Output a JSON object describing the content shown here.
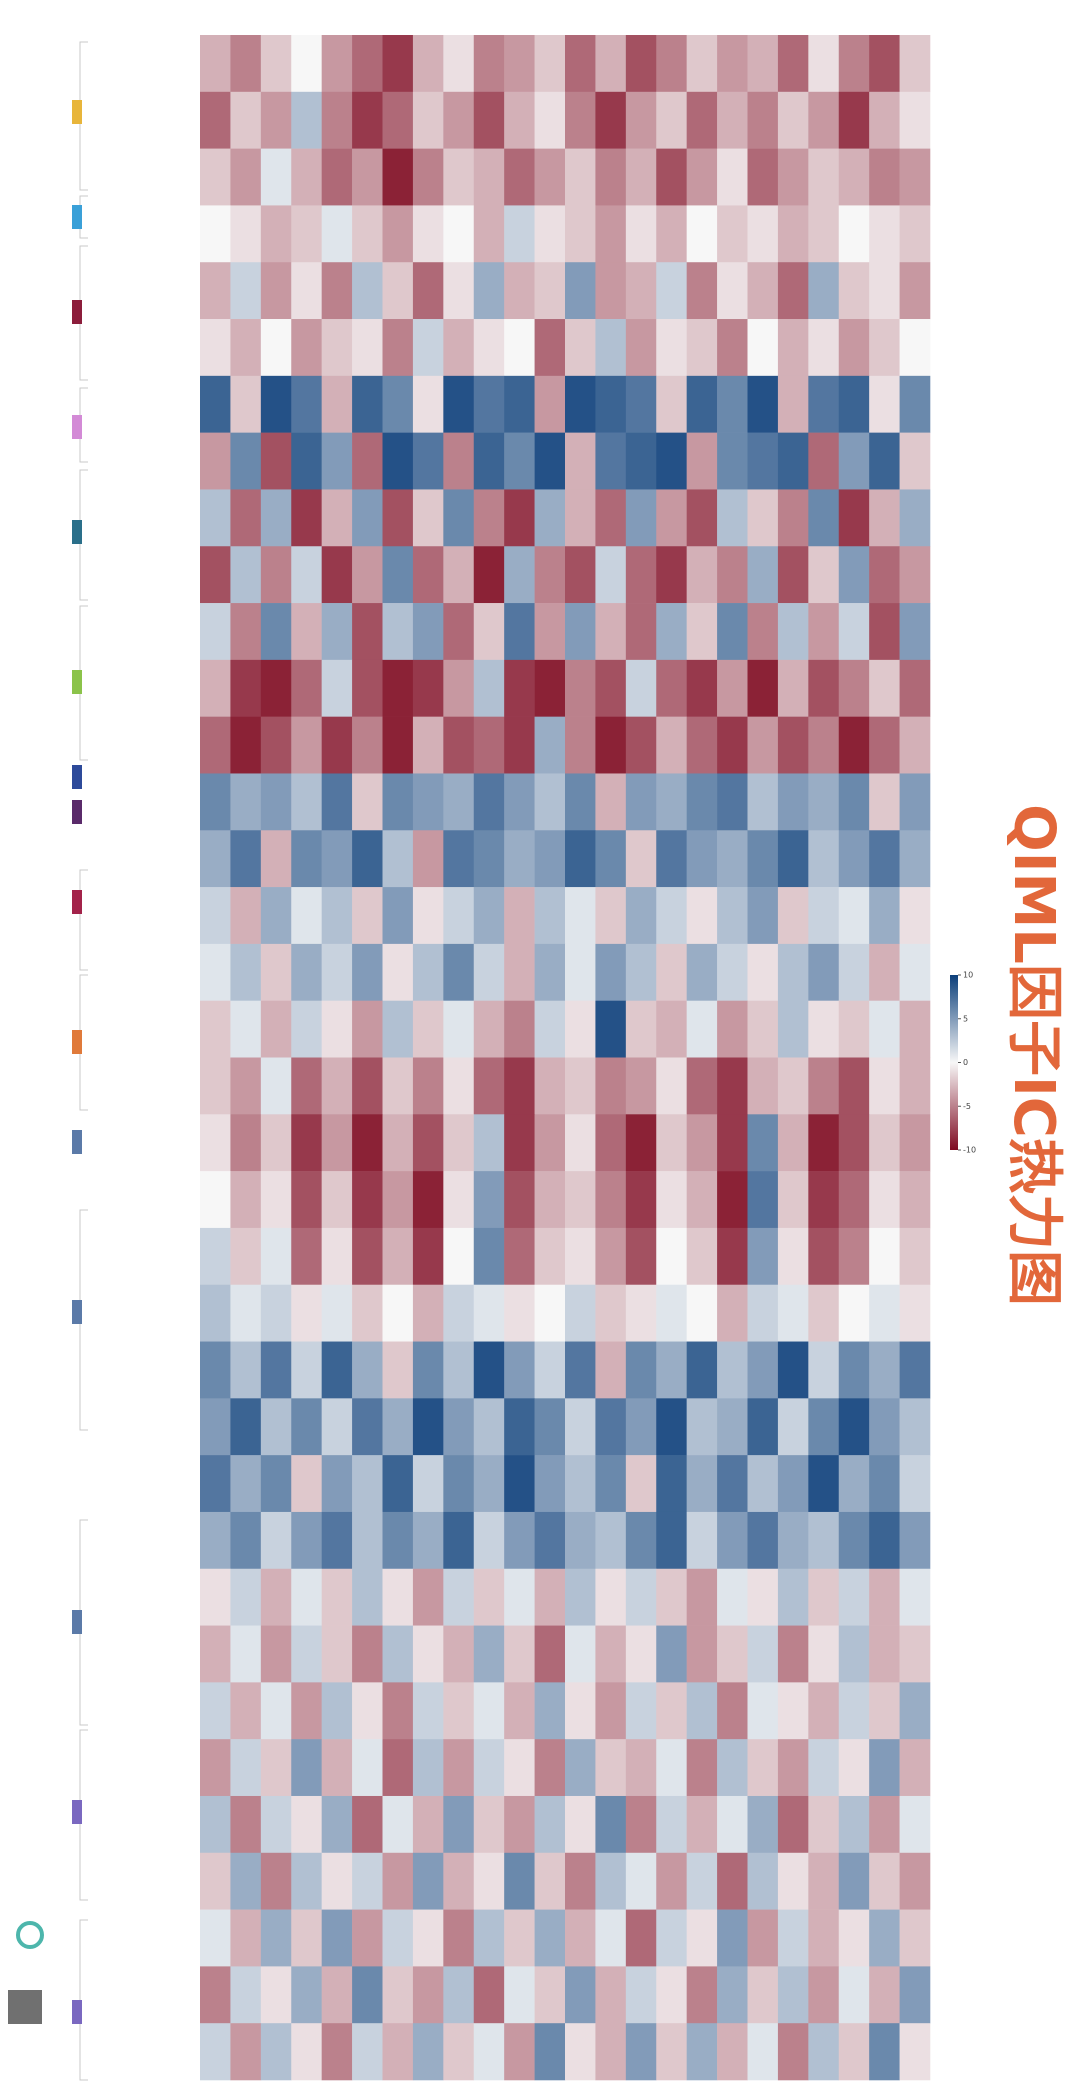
{
  "chart_data": {
    "type": "heatmap",
    "title": "QIML因子IC热力图",
    "title_color": "#e2673a",
    "colors": [
      "#7f0a21",
      "#f7f7f7",
      "#0c3f7a"
    ],
    "zlim": [
      -10,
      10
    ],
    "zticks": [
      -10,
      -5,
      0,
      5,
      10
    ],
    "values": [
      [
        -3,
        -5,
        -2,
        0,
        -4,
        -6,
        -8,
        -3,
        -1,
        -5,
        -4,
        -2,
        -6,
        -3,
        -7,
        -5,
        -2,
        -4,
        -3,
        -6,
        -1,
        -5,
        -7,
        -2
      ],
      [
        -6,
        -2,
        -4,
        3,
        -5,
        -8,
        -6,
        -2,
        -4,
        -7,
        -3,
        -1,
        -5,
        -8,
        -4,
        -2,
        -6,
        -3,
        -5,
        -2,
        -4,
        -8,
        -3,
        -1
      ],
      [
        -2,
        -4,
        1,
        -3,
        -6,
        -4,
        -9,
        -5,
        -2,
        -3,
        -6,
        -4,
        -2,
        -5,
        -3,
        -7,
        -4,
        -1,
        -6,
        -4,
        -2,
        -3,
        -5,
        -4
      ],
      [
        0,
        -1,
        -3,
        -2,
        1,
        -2,
        -4,
        -1,
        0,
        -3,
        2,
        -1,
        -2,
        -4,
        -1,
        -3,
        0,
        -2,
        -1,
        -3,
        -2,
        0,
        -1,
        -2
      ],
      [
        -3,
        2,
        -4,
        -1,
        -5,
        3,
        -2,
        -6,
        -1,
        4,
        -3,
        -2,
        5,
        -4,
        -3,
        2,
        -5,
        -1,
        -3,
        -6,
        4,
        -2,
        -1,
        -4
      ],
      [
        -1,
        -3,
        0,
        -4,
        -2,
        -1,
        -5,
        2,
        -3,
        -1,
        0,
        -6,
        -2,
        3,
        -4,
        -1,
        -2,
        -5,
        0,
        -3,
        -1,
        -4,
        -2,
        0
      ],
      [
        8,
        -2,
        9,
        7,
        -3,
        8,
        6,
        -1,
        9,
        7,
        8,
        -4,
        9,
        8,
        7,
        -2,
        8,
        6,
        9,
        -3,
        7,
        8,
        -1,
        6
      ],
      [
        -4,
        6,
        -7,
        8,
        5,
        -6,
        9,
        7,
        -5,
        8,
        6,
        9,
        -3,
        7,
        8,
        9,
        -4,
        6,
        7,
        8,
        -6,
        5,
        8,
        -2
      ],
      [
        3,
        -6,
        4,
        -8,
        -3,
        5,
        -7,
        -2,
        6,
        -5,
        -8,
        4,
        -3,
        -6,
        5,
        -4,
        -7,
        3,
        -2,
        -5,
        6,
        -8,
        -3,
        4
      ],
      [
        -7,
        3,
        -5,
        2,
        -8,
        -4,
        6,
        -6,
        -3,
        -9,
        4,
        -5,
        -7,
        2,
        -6,
        -8,
        -3,
        -5,
        4,
        -7,
        -2,
        5,
        -6,
        -4
      ],
      [
        2,
        -5,
        6,
        -3,
        4,
        -7,
        3,
        5,
        -6,
        -2,
        7,
        -4,
        5,
        -3,
        -6,
        4,
        -2,
        6,
        -5,
        3,
        -4,
        2,
        -7,
        5
      ],
      [
        -3,
        -8,
        -9,
        -6,
        2,
        -7,
        -9,
        -8,
        -4,
        3,
        -8,
        -9,
        -5,
        -7,
        2,
        -6,
        -8,
        -4,
        -9,
        -3,
        -7,
        -5,
        -2,
        -6
      ],
      [
        -6,
        -9,
        -7,
        -4,
        -8,
        -5,
        -9,
        -3,
        -7,
        -6,
        -8,
        4,
        -5,
        -9,
        -7,
        -3,
        -6,
        -8,
        -4,
        -7,
        -5,
        -9,
        -6,
        -3
      ],
      [
        6,
        4,
        5,
        3,
        7,
        -2,
        6,
        5,
        4,
        7,
        5,
        3,
        6,
        -3,
        5,
        4,
        6,
        7,
        3,
        5,
        4,
        6,
        -2,
        5
      ],
      [
        4,
        7,
        -3,
        6,
        5,
        8,
        3,
        -4,
        7,
        6,
        4,
        5,
        8,
        6,
        -2,
        7,
        5,
        4,
        6,
        8,
        3,
        5,
        7,
        4
      ],
      [
        2,
        -3,
        4,
        1,
        3,
        -2,
        5,
        -1,
        2,
        4,
        -3,
        3,
        1,
        -2,
        4,
        2,
        -1,
        3,
        5,
        -2,
        2,
        1,
        4,
        -1
      ],
      [
        1,
        3,
        -2,
        4,
        2,
        5,
        -1,
        3,
        6,
        2,
        -3,
        4,
        1,
        5,
        3,
        -2,
        4,
        2,
        -1,
        3,
        5,
        2,
        -3,
        1
      ],
      [
        -2,
        1,
        -3,
        2,
        -1,
        -4,
        3,
        -2,
        1,
        -3,
        -5,
        2,
        -1,
        9,
        -2,
        -3,
        1,
        -4,
        -2,
        3,
        -1,
        -2,
        1,
        -3
      ],
      [
        -2,
        -4,
        1,
        -6,
        -3,
        -7,
        -2,
        -5,
        -1,
        -6,
        -8,
        -3,
        -2,
        -5,
        -4,
        -1,
        -6,
        -8,
        -3,
        -2,
        -5,
        -7,
        -1,
        -3
      ],
      [
        -1,
        -5,
        -2,
        -8,
        -4,
        -9,
        -3,
        -7,
        -2,
        3,
        -8,
        -4,
        -1,
        -6,
        -9,
        -2,
        -4,
        -8,
        6,
        -3,
        -9,
        -7,
        -2,
        -4
      ],
      [
        0,
        -3,
        -1,
        -7,
        -2,
        -8,
        -4,
        -9,
        -1,
        5,
        -7,
        -3,
        -2,
        -5,
        -8,
        -1,
        -3,
        -9,
        7,
        -2,
        -8,
        -6,
        -1,
        -3
      ],
      [
        2,
        -2,
        1,
        -6,
        -1,
        -7,
        -3,
        -8,
        0,
        6,
        -6,
        -2,
        -1,
        -4,
        -7,
        0,
        -2,
        -8,
        5,
        -1,
        -7,
        -5,
        0,
        -2
      ],
      [
        3,
        1,
        2,
        -1,
        1,
        -2,
        0,
        -3,
        2,
        1,
        -1,
        0,
        2,
        -2,
        -1,
        1,
        0,
        -3,
        2,
        1,
        -2,
        0,
        1,
        -1
      ],
      [
        6,
        3,
        7,
        2,
        8,
        4,
        -2,
        6,
        3,
        9,
        5,
        2,
        7,
        -3,
        6,
        4,
        8,
        3,
        5,
        9,
        2,
        6,
        4,
        7
      ],
      [
        5,
        8,
        3,
        6,
        2,
        7,
        4,
        9,
        5,
        3,
        8,
        6,
        2,
        7,
        5,
        9,
        3,
        4,
        8,
        2,
        6,
        9,
        5,
        3
      ],
      [
        7,
        4,
        6,
        -2,
        5,
        3,
        8,
        2,
        6,
        4,
        9,
        5,
        3,
        6,
        -2,
        8,
        4,
        7,
        3,
        5,
        9,
        4,
        6,
        2
      ],
      [
        4,
        6,
        2,
        5,
        7,
        3,
        6,
        4,
        8,
        2,
        5,
        7,
        4,
        3,
        6,
        8,
        2,
        5,
        7,
        4,
        3,
        6,
        8,
        5
      ],
      [
        -1,
        2,
        -3,
        1,
        -2,
        3,
        -1,
        -4,
        2,
        -2,
        1,
        -3,
        3,
        -1,
        2,
        -2,
        -4,
        1,
        -1,
        3,
        -2,
        2,
        -3,
        1
      ],
      [
        -3,
        1,
        -4,
        2,
        -2,
        -5,
        3,
        -1,
        -3,
        4,
        -2,
        -6,
        1,
        -3,
        -1,
        5,
        -4,
        -2,
        2,
        -5,
        -1,
        3,
        -3,
        -2
      ],
      [
        2,
        -3,
        1,
        -4,
        3,
        -1,
        -5,
        2,
        -2,
        1,
        -3,
        4,
        -1,
        -4,
        2,
        -2,
        3,
        -5,
        1,
        -1,
        -3,
        2,
        -2,
        4
      ],
      [
        -4,
        2,
        -2,
        5,
        -3,
        1,
        -6,
        3,
        -4,
        2,
        -1,
        -5,
        4,
        -2,
        -3,
        1,
        -5,
        3,
        -2,
        -4,
        2,
        -1,
        5,
        -3
      ],
      [
        3,
        -5,
        2,
        -1,
        4,
        -6,
        1,
        -3,
        5,
        -2,
        -4,
        3,
        -1,
        6,
        -5,
        2,
        -3,
        1,
        4,
        -6,
        -2,
        3,
        -4,
        1
      ],
      [
        -2,
        4,
        -5,
        3,
        -1,
        2,
        -4,
        5,
        -3,
        -1,
        6,
        -2,
        -5,
        3,
        1,
        -4,
        2,
        -6,
        3,
        -1,
        -3,
        5,
        -2,
        -4
      ],
      [
        1,
        -3,
        4,
        -2,
        5,
        -4,
        2,
        -1,
        -5,
        3,
        -2,
        4,
        -3,
        1,
        -6,
        2,
        -1,
        5,
        -4,
        2,
        -3,
        -1,
        4,
        -2
      ],
      [
        -5,
        2,
        -1,
        4,
        -3,
        6,
        -2,
        -4,
        3,
        -6,
        1,
        -2,
        5,
        -3,
        2,
        -1,
        -5,
        4,
        -2,
        3,
        -4,
        1,
        -3,
        5
      ],
      [
        2,
        -4,
        3,
        -1,
        -5,
        2,
        -3,
        4,
        -2,
        1,
        -4,
        6,
        -1,
        -3,
        5,
        -2,
        4,
        -3,
        1,
        -5,
        3,
        -2,
        6,
        -1
      ]
    ]
  }
}
